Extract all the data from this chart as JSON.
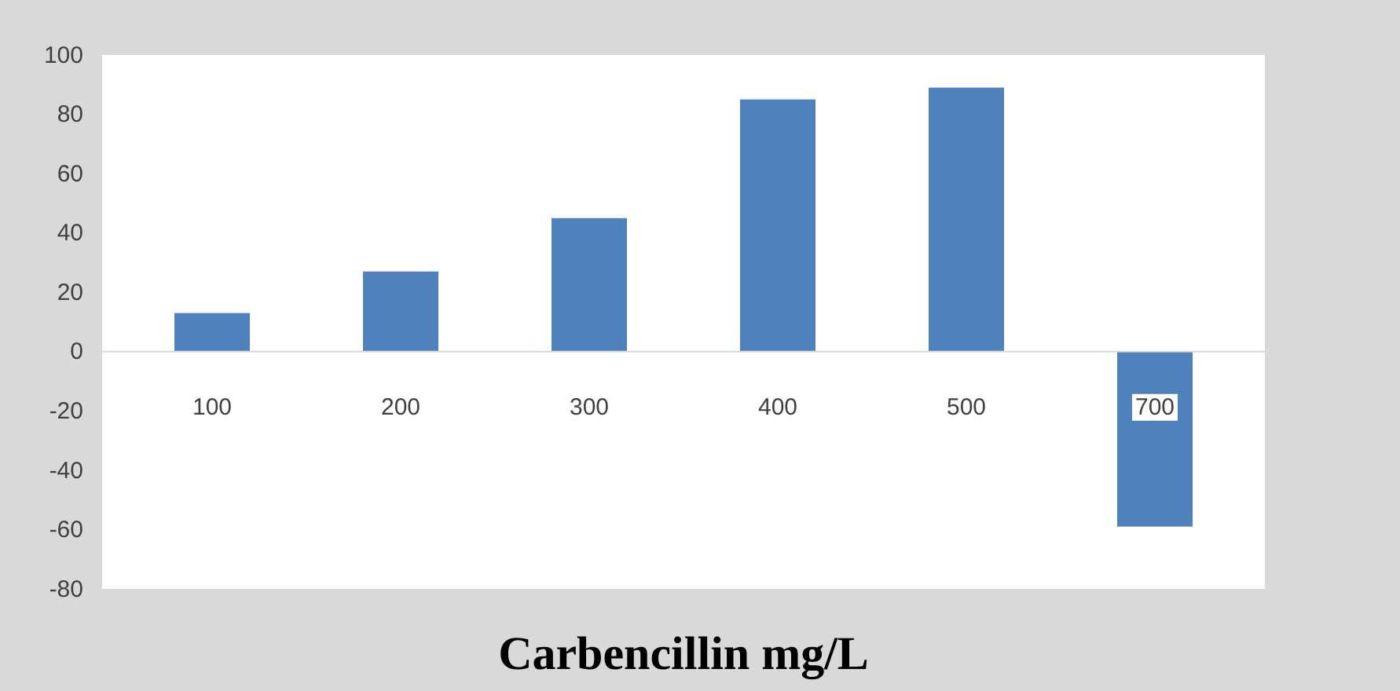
{
  "chart_data": {
    "type": "bar",
    "xlabel": "Carbencillin mg/L",
    "categories": [
      "100",
      "200",
      "300",
      "400",
      "500",
      "700"
    ],
    "values": [
      13,
      27,
      45,
      85,
      89,
      -59
    ],
    "color": "#4f81bd",
    "ylim": [
      -80,
      100
    ],
    "yticks": [
      -80,
      -60,
      -40,
      -20,
      0,
      20,
      40,
      60,
      80,
      100
    ],
    "grid": false
  }
}
